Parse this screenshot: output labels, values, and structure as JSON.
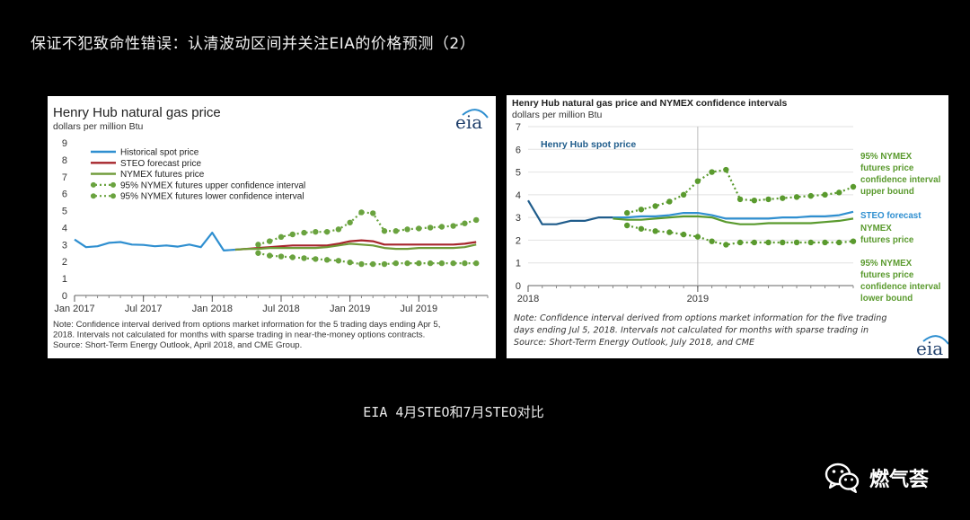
{
  "page": {
    "title": "保证不犯致命性错误：认清波动区间并关注EIA的价格预测（2）",
    "caption": "EIA 4月STEO和7月STEO对比",
    "brand": "燃气荟",
    "brand_icon": "wechat-icon"
  },
  "chart_data": [
    {
      "type": "line",
      "title": "Henry Hub natural gas price",
      "ylabel": "dollars per million Btu",
      "ylim": [
        0,
        9
      ],
      "yticks": [
        "0",
        "1",
        "2",
        "3",
        "4",
        "5",
        "6",
        "7",
        "8",
        "9"
      ],
      "xlim": [
        0,
        36
      ],
      "xticks": [
        {
          "x": 0,
          "label": "Jan 2017"
        },
        {
          "x": 6,
          "label": "Jul 2017"
        },
        {
          "x": 12,
          "label": "Jan 2018"
        },
        {
          "x": 18,
          "label": "Jul 2018"
        },
        {
          "x": 24,
          "label": "Jan 2019"
        },
        {
          "x": 30,
          "label": "Jul 2019"
        }
      ],
      "logo": "eia",
      "legend": [
        "Historical spot price",
        "STEO forecast price",
        "NYMEX futures price",
        "95% NYMEX futures upper confidence interval",
        "95% NYMEX futures lower confidence interval"
      ],
      "series": [
        {
          "name": "Historical spot price",
          "color": "#2f8fd0",
          "style": "solid",
          "x": [
            0,
            1,
            2,
            3,
            4,
            5,
            6,
            7,
            8,
            9,
            10,
            11,
            12,
            13,
            14
          ],
          "values": [
            3.3,
            2.85,
            2.9,
            3.1,
            3.15,
            3.0,
            2.98,
            2.9,
            2.95,
            2.88,
            3.0,
            2.85,
            3.7,
            2.65,
            2.7
          ]
        },
        {
          "name": "STEO forecast price",
          "color": "#a6252b",
          "style": "solid",
          "x": [
            14,
            15,
            16,
            17,
            18,
            19,
            20,
            21,
            22,
            23,
            24,
            25,
            26,
            27,
            28,
            29,
            30,
            31,
            32,
            33,
            34,
            35
          ],
          "values": [
            2.7,
            2.75,
            2.8,
            2.85,
            2.9,
            2.95,
            2.95,
            2.95,
            2.95,
            3.05,
            3.2,
            3.25,
            3.2,
            3.0,
            3.0,
            3.0,
            3.0,
            3.0,
            3.0,
            3.0,
            3.05,
            3.15
          ]
        },
        {
          "name": "NYMEX futures price",
          "color": "#6e9a37",
          "style": "solid",
          "x": [
            14,
            15,
            16,
            17,
            18,
            19,
            20,
            21,
            22,
            23,
            24,
            25,
            26,
            27,
            28,
            29,
            30,
            31,
            32,
            33,
            34,
            35
          ],
          "values": [
            2.7,
            2.75,
            2.75,
            2.8,
            2.8,
            2.8,
            2.8,
            2.8,
            2.85,
            2.95,
            3.05,
            3.0,
            2.95,
            2.8,
            2.75,
            2.75,
            2.8,
            2.8,
            2.8,
            2.8,
            2.85,
            3.0
          ]
        },
        {
          "name": "95% NYMEX futures upper confidence interval",
          "color": "#6aa33f",
          "style": "dotted",
          "x": [
            16,
            17,
            18,
            19,
            20,
            21,
            22,
            23,
            24,
            25,
            26,
            27,
            28,
            29,
            30,
            31,
            32,
            33,
            34,
            35
          ],
          "values": [
            3.0,
            3.2,
            3.45,
            3.6,
            3.7,
            3.75,
            3.75,
            3.9,
            4.3,
            4.9,
            4.85,
            3.8,
            3.8,
            3.9,
            3.95,
            4.0,
            4.05,
            4.1,
            4.25,
            4.45
          ]
        },
        {
          "name": "95% NYMEX futures lower confidence interval",
          "color": "#6aa33f",
          "style": "dotted",
          "x": [
            16,
            17,
            18,
            19,
            20,
            21,
            22,
            23,
            24,
            25,
            26,
            27,
            28,
            29,
            30,
            31,
            32,
            33,
            34,
            35
          ],
          "values": [
            2.5,
            2.35,
            2.3,
            2.25,
            2.2,
            2.15,
            2.1,
            2.05,
            1.95,
            1.85,
            1.85,
            1.85,
            1.9,
            1.9,
            1.9,
            1.9,
            1.9,
            1.9,
            1.9,
            1.9
          ]
        }
      ],
      "note": [
        "Note: Confidence interval derived from options market information for the 5 trading days ending Apr 5,",
        "2018. Intervals not calculated for months with sparse trading in near-the-money options contracts.",
        "Source: Short-Term Energy Outlook, April 2018, and CME Group."
      ]
    },
    {
      "type": "line",
      "title": "Henry Hub natural gas price and NYMEX confidence intervals",
      "ylabel": "dollars per million Btu",
      "ylim": [
        0,
        7
      ],
      "yticks": [
        "0",
        "1",
        "2",
        "3",
        "4",
        "5",
        "6",
        "7"
      ],
      "xlim": [
        0,
        23
      ],
      "xticks": [
        {
          "x": 0,
          "label": "2018"
        },
        {
          "x": 12,
          "label": "2019"
        }
      ],
      "logo": "eia",
      "annotations": [
        {
          "text": "Henry Hub spot price",
          "color": "#1f5c8b"
        },
        {
          "lines": [
            "95% NYMEX",
            "futures price",
            "confidence interval",
            "upper bound"
          ],
          "color": "#5a9a2e"
        },
        {
          "lines": [
            "STEO forecast"
          ],
          "color": "#2f8fd0"
        },
        {
          "lines": [
            "NYMEX",
            "futures price"
          ],
          "color": "#5a9a2e"
        },
        {
          "lines": [
            "95% NYMEX",
            "futures price",
            "confidence interval",
            "lower bound"
          ],
          "color": "#5a9a2e"
        }
      ],
      "series": [
        {
          "name": "Henry Hub spot price",
          "color": "#1f5c8b",
          "style": "solid",
          "x": [
            0,
            1,
            2,
            3,
            4,
            5,
            6
          ],
          "values": [
            3.75,
            2.7,
            2.7,
            2.85,
            2.85,
            3.0,
            3.0
          ]
        },
        {
          "name": "STEO forecast",
          "color": "#2f8fd0",
          "style": "solid",
          "x": [
            6,
            7,
            8,
            9,
            10,
            11,
            12,
            13,
            14,
            15,
            16,
            17,
            18,
            19,
            20,
            21,
            22,
            23
          ],
          "values": [
            3.0,
            3.0,
            3.05,
            3.05,
            3.1,
            3.2,
            3.2,
            3.1,
            2.95,
            2.95,
            2.95,
            2.95,
            3.0,
            3.0,
            3.05,
            3.05,
            3.1,
            3.25
          ]
        },
        {
          "name": "NYMEX futures price",
          "color": "#5a9a2e",
          "style": "solid",
          "x": [
            6,
            7,
            8,
            9,
            10,
            11,
            12,
            13,
            14,
            15,
            16,
            17,
            18,
            19,
            20,
            21,
            22,
            23
          ],
          "values": [
            2.95,
            2.9,
            2.9,
            2.95,
            3.0,
            3.05,
            3.05,
            3.0,
            2.8,
            2.7,
            2.7,
            2.75,
            2.75,
            2.75,
            2.75,
            2.8,
            2.85,
            2.95
          ]
        },
        {
          "name": "95% NYMEX upper bound",
          "color": "#5a9a2e",
          "style": "dotted",
          "x": [
            7,
            8,
            9,
            10,
            11,
            12,
            13,
            14,
            15,
            16,
            17,
            18,
            19,
            20,
            21,
            22,
            23
          ],
          "values": [
            3.2,
            3.35,
            3.5,
            3.7,
            4.0,
            4.6,
            5.0,
            5.1,
            3.8,
            3.75,
            3.8,
            3.85,
            3.9,
            3.95,
            4.0,
            4.1,
            4.35
          ]
        },
        {
          "name": "95% NYMEX lower bound",
          "color": "#5a9a2e",
          "style": "dotted",
          "x": [
            7,
            8,
            9,
            10,
            11,
            12,
            13,
            14,
            15,
            16,
            17,
            18,
            19,
            20,
            21,
            22,
            23
          ],
          "values": [
            2.65,
            2.5,
            2.4,
            2.35,
            2.25,
            2.15,
            1.95,
            1.8,
            1.9,
            1.9,
            1.9,
            1.9,
            1.9,
            1.9,
            1.9,
            1.9,
            1.95
          ]
        }
      ],
      "note": [
        "Note: Confidence interval derived from options market information for the five trading",
        "days ending Jul 5, 2018. Intervals not calculated for months with sparse trading in",
        "Source: Short-Term Energy Outlook, July 2018, and CME"
      ]
    }
  ]
}
